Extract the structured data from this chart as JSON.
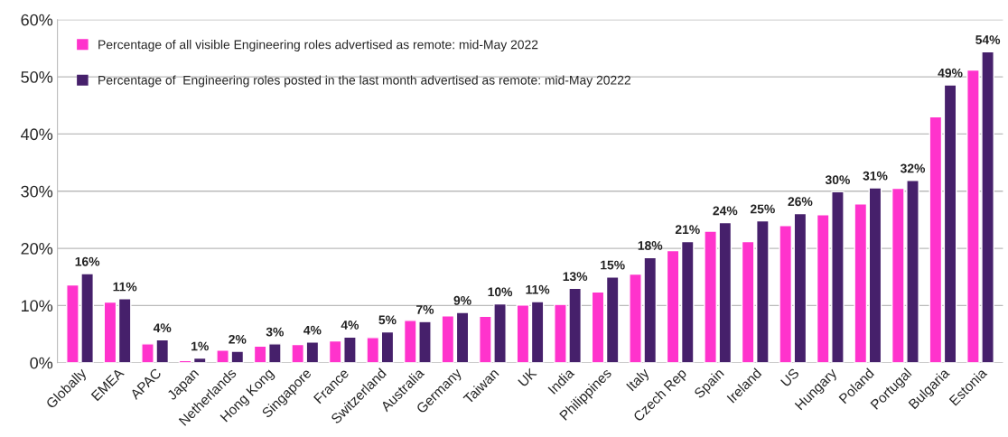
{
  "chart_data": {
    "type": "bar",
    "categories": [
      "Globally",
      "EMEA",
      "APAC",
      "Japan",
      "Netherlands",
      "Hong Kong",
      "Singapore",
      "France",
      "Switzerland",
      "Australia",
      "Germany",
      "Taiwan",
      "UK",
      "India",
      "Philippines",
      "Italy",
      "Czech Rep",
      "Spain",
      "Ireland",
      "US",
      "Hungary",
      "Poland",
      "Portugal",
      "Bulgaria",
      "Estonia"
    ],
    "series": [
      {
        "name": "Percentage of all visible Engineering roles advertised as remote: mid-May 2022",
        "color": "#ff33cc",
        "values": [
          13.6,
          10.6,
          3.3,
          0.4,
          2.2,
          2.9,
          3.2,
          3.8,
          4.4,
          7.4,
          8.2,
          8.1,
          10.1,
          10.2,
          12.4,
          15.5,
          19.6,
          23.0,
          21.2,
          24.0,
          25.9,
          27.8,
          30.5,
          43.0,
          51.2
        ]
      },
      {
        "name": "Percentage of  Engineering roles posted in the last month advertised as remote: mid-May 20222",
        "color": "#46206b",
        "values": [
          15.6,
          11.2,
          4.0,
          0.8,
          2.0,
          3.3,
          3.6,
          4.5,
          5.4,
          7.2,
          8.8,
          10.3,
          10.7,
          13.0,
          15.0,
          18.4,
          21.2,
          24.5,
          24.8,
          26.1,
          29.9,
          30.6,
          31.9,
          48.6,
          54.4
        ],
        "value_labels": [
          "16%",
          "11%",
          "4%",
          "1%",
          "2%",
          "3%",
          "4%",
          "4%",
          "5%",
          "7%",
          "9%",
          "10%",
          "11%",
          "13%",
          "15%",
          "18%",
          "21%",
          "24%",
          "25%",
          "26%",
          "30%",
          "31%",
          "32%",
          "49%",
          "54%"
        ]
      }
    ],
    "ylim": [
      0,
      60
    ],
    "yticks": [
      {
        "value": 0,
        "label": "0%"
      },
      {
        "value": 10,
        "label": "10%"
      },
      {
        "value": 20,
        "label": "20%"
      },
      {
        "value": 30,
        "label": "30%"
      },
      {
        "value": 40,
        "label": "40%"
      },
      {
        "value": 50,
        "label": "50%"
      },
      {
        "value": 60,
        "label": "60%"
      }
    ],
    "grid": "y",
    "legend": "top left"
  }
}
